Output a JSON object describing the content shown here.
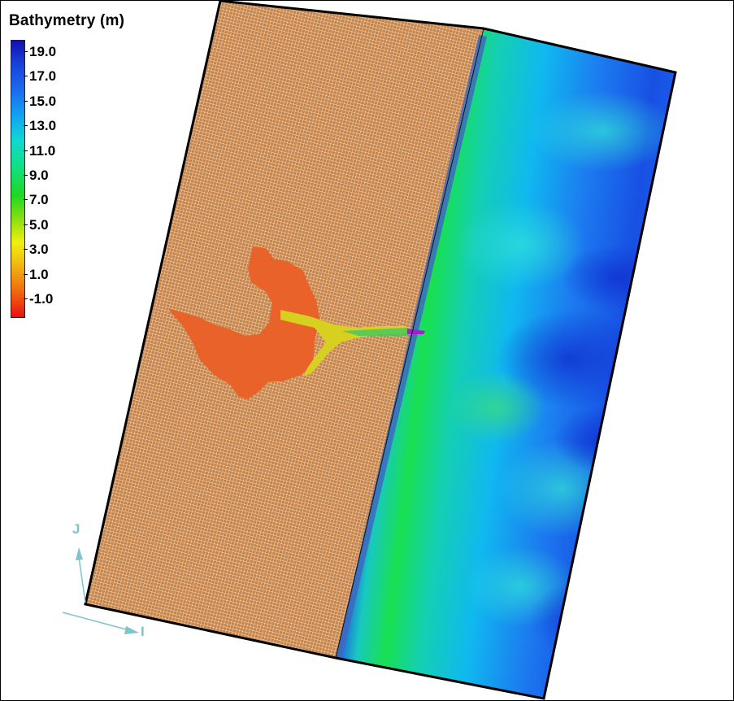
{
  "legend": {
    "title": "Bathymetry (m)",
    "units": "m",
    "ticks": [
      "19.0",
      "17.0",
      "15.0",
      "13.0",
      "11.0",
      "9.0",
      "7.0",
      "5.0",
      "3.0",
      "1.0",
      "-1.0"
    ]
  },
  "axes": {
    "i_label": "I",
    "j_label": "J"
  },
  "colors": {
    "land_grid": "#c8854a",
    "lagoon": "#e8622a",
    "shallow_band": "#6a1ad8",
    "deep_blue": "#1a48e0",
    "mid_cyan": "#14c8e8",
    "shelf_green": "#18e050",
    "axis_arrow": "#7fc4cc",
    "outline": "#000000"
  }
}
